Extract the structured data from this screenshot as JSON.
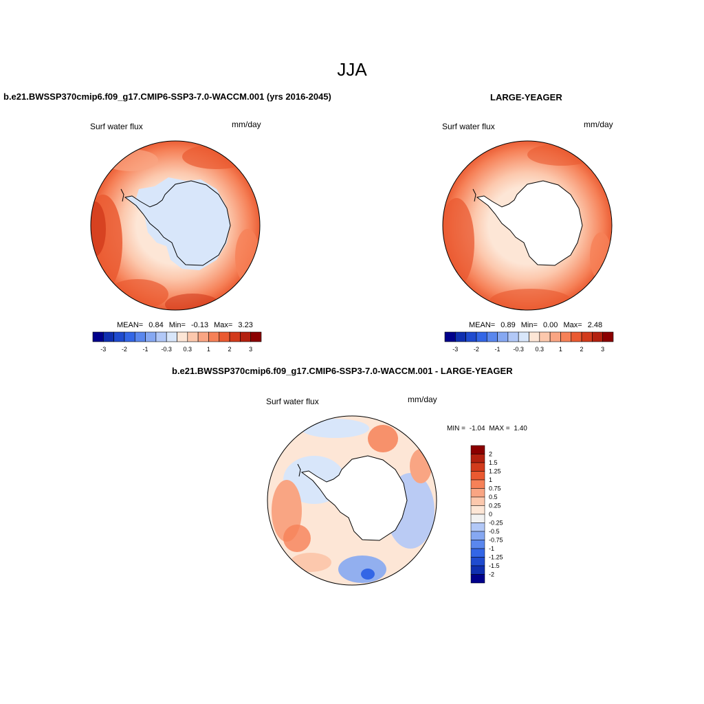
{
  "season": "JJA",
  "panels": {
    "left": {
      "title": "b.e21.BWSSP370cmip6.f09_g17.CMIP6-SSP3-7.0-WACCM.001 (yrs 2016-2045)",
      "variable": "Surf water flux",
      "units": "mm/day",
      "stats": {
        "mean_label": "MEAN=",
        "mean": "0.84",
        "min_label": "Min=",
        "min": "-0.13",
        "max_label": "Max=",
        "max": "3.23"
      }
    },
    "right": {
      "title": "LARGE-YEAGER",
      "variable": "Surf water flux",
      "units": "mm/day",
      "stats": {
        "mean_label": "MEAN=",
        "mean": "0.89",
        "min_label": "Min=",
        "min": "0.00",
        "max_label": "Max=",
        "max": "2.48"
      }
    },
    "diff": {
      "title": "b.e21.BWSSP370cmip6.f09_g17.CMIP6-SSP3-7.0-WACCM.001 - LARGE-YEAGER",
      "variable": "Surf water flux",
      "units": "mm/day",
      "minmax": {
        "min_label": "MIN =",
        "min": "-1.04",
        "max_label": "MAX =",
        "max": "1.40"
      }
    }
  },
  "colorbar_horizontal": {
    "colors": [
      "#00008b",
      "#0f2fb0",
      "#1f4bcf",
      "#3366e6",
      "#5a87ee",
      "#86a8f2",
      "#b2c8f7",
      "#d8e6fa",
      "#fde6d6",
      "#fcc8ad",
      "#f9a583",
      "#f68158",
      "#ea5a31",
      "#d23b1c",
      "#b3210f",
      "#8b0000"
    ],
    "tick_labels": [
      "-3",
      "-2",
      "-1",
      "-0.3",
      "0.3",
      "1",
      "2",
      "3"
    ]
  },
  "colorbar_vertical": {
    "colors": [
      "#8b0000",
      "#b3210f",
      "#d23b1c",
      "#ea5a31",
      "#f68158",
      "#f9a583",
      "#fcc8ad",
      "#fde6d6",
      "#f2f2f2",
      "#b2c8f7",
      "#86a8f2",
      "#5a87ee",
      "#3366e6",
      "#1f4bcf",
      "#0f2fb0",
      "#00008b"
    ],
    "tick_labels": [
      "2",
      "1.5",
      "1.25",
      "1",
      "0.75",
      "0.5",
      "0.25",
      "0",
      "-0.25",
      "-0.5",
      "-0.75",
      "-1",
      "-1.25",
      "-1.5",
      "-2"
    ]
  }
}
